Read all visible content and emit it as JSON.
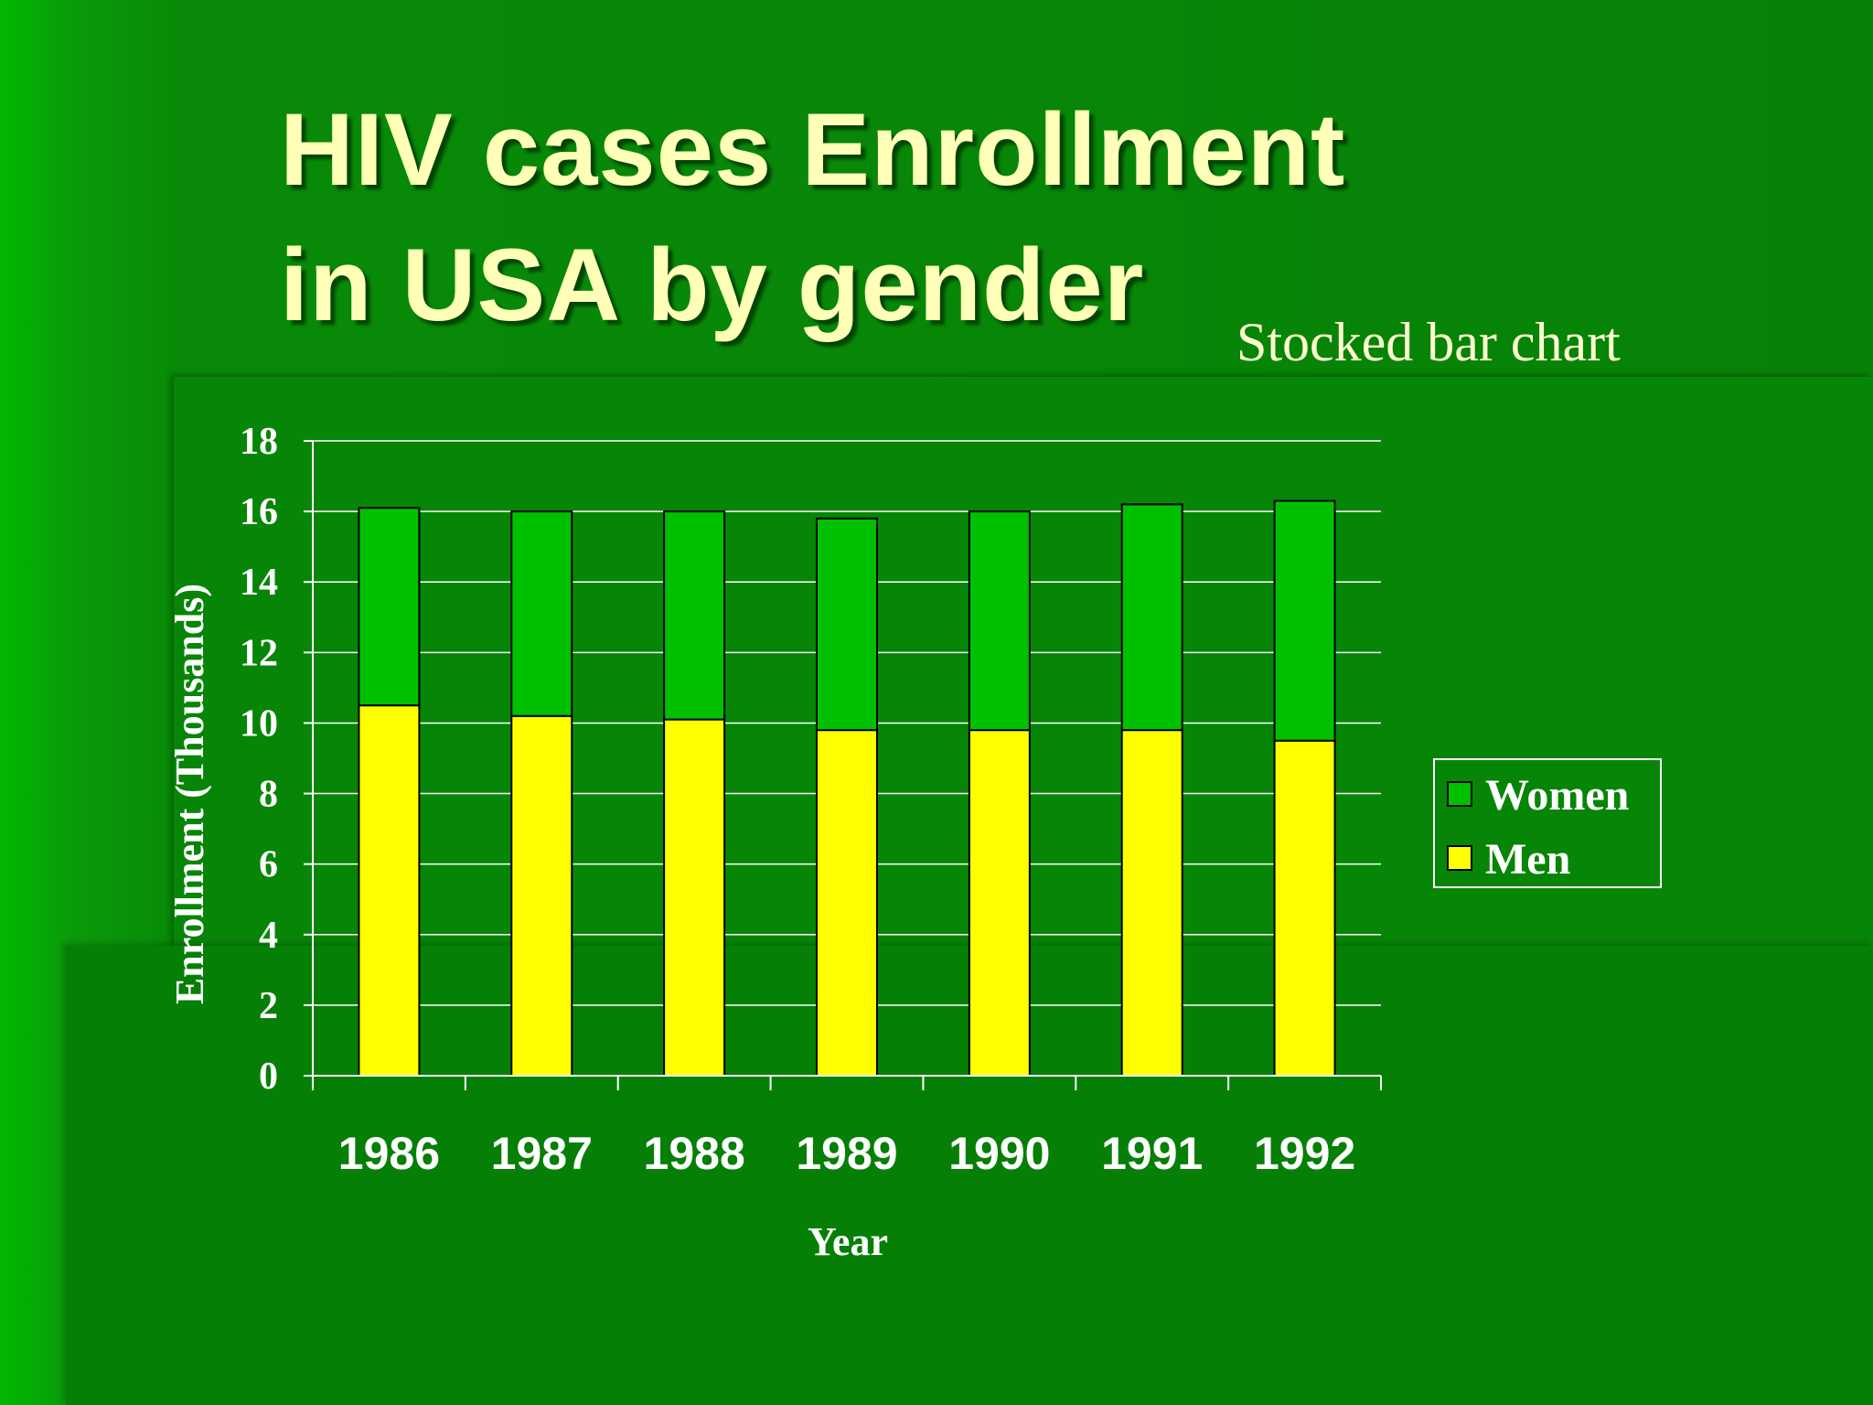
{
  "slide": {
    "title_line1": "HIV cases  Enrollment",
    "title_line2": "in USA by gender",
    "subtitle": "Stocked bar chart"
  },
  "colors": {
    "men": "#ffff00",
    "women": "#00c000",
    "text": "#ffffff",
    "title": "#ffffb8"
  },
  "chart_data": {
    "type": "bar",
    "stacked": true,
    "categories": [
      "1986",
      "1987",
      "1988",
      "1989",
      "1990",
      "1991",
      "1992"
    ],
    "series": [
      {
        "name": "Men",
        "values": [
          10.5,
          10.2,
          10.1,
          9.8,
          9.8,
          9.8,
          9.5
        ]
      },
      {
        "name": "Women",
        "values": [
          5.6,
          5.8,
          5.9,
          6.0,
          6.2,
          6.4,
          6.8
        ]
      }
    ],
    "xlabel": "Year",
    "ylabel": "Enrollment (Thousands)",
    "ylim": [
      0,
      18
    ],
    "yticks": [
      "0",
      "2",
      "4",
      "6",
      "8",
      "10",
      "12",
      "14",
      "16",
      "18"
    ],
    "grid": true,
    "legend": {
      "position": "right",
      "entries": [
        "Women",
        "Men"
      ]
    }
  }
}
